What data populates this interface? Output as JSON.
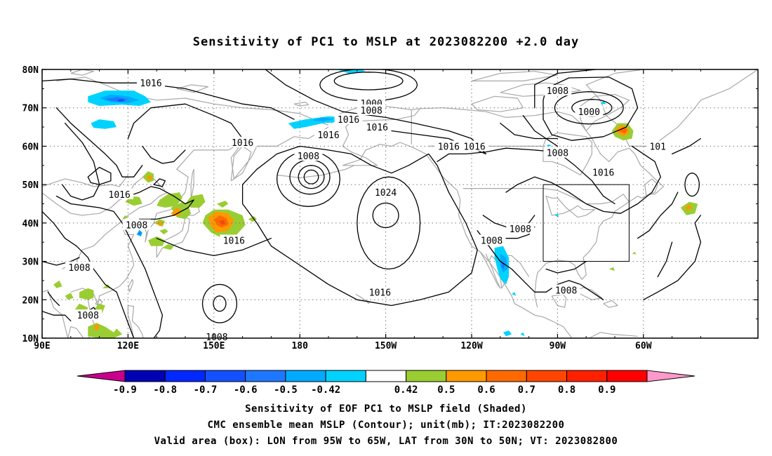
{
  "title": "Sensitivity of PC1 to MSLP at 2023082200 +2.0 day",
  "lat_labels": [
    "80N",
    "70N",
    "60N",
    "50N",
    "40N",
    "30N",
    "20N",
    "10N"
  ],
  "lon_labels": [
    "90E",
    "120E",
    "150E",
    "180",
    "150W",
    "120W",
    "90W",
    "60W"
  ],
  "contour_labels": [
    {
      "text": "1016",
      "lon": 128,
      "lat": 76.5
    },
    {
      "text": "1000",
      "lon": -155,
      "lat": 71.2
    },
    {
      "text": "1008",
      "lon": -155,
      "lat": 69.4
    },
    {
      "text": "1016",
      "lon": -163,
      "lat": 67
    },
    {
      "text": "1016",
      "lon": -153,
      "lat": 65
    },
    {
      "text": "1016",
      "lon": -170,
      "lat": 63
    },
    {
      "text": "1016",
      "lon": 160,
      "lat": 61
    },
    {
      "text": "1008",
      "lon": -177,
      "lat": 57.5
    },
    {
      "text": "1016",
      "lon": -128,
      "lat": 60
    },
    {
      "text": "1016",
      "lon": -119,
      "lat": 60
    },
    {
      "text": "1008",
      "lon": -90,
      "lat": 74.5
    },
    {
      "text": "1000",
      "lon": -79,
      "lat": 69
    },
    {
      "text": "1008",
      "lon": -90,
      "lat": 58.3
    },
    {
      "text": "1016",
      "lon": -74,
      "lat": 53.2
    },
    {
      "text": "101",
      "lon": -55,
      "lat": 60
    },
    {
      "text": "1024",
      "lon": -150,
      "lat": 48
    },
    {
      "text": "1016",
      "lon": 117,
      "lat": 47.5
    },
    {
      "text": "1008",
      "lon": 123,
      "lat": 39.5
    },
    {
      "text": "1016",
      "lon": 157,
      "lat": 35.5
    },
    {
      "text": "1008",
      "lon": 103,
      "lat": 28.5
    },
    {
      "text": "1008",
      "lon": 106,
      "lat": 16
    },
    {
      "text": "1008",
      "lon": 151,
      "lat": 10.4
    },
    {
      "text": "1008",
      "lon": -103,
      "lat": 38.5
    },
    {
      "text": "1008",
      "lon": -113,
      "lat": 35.5
    },
    {
      "text": "1016",
      "lon": -152,
      "lat": 22
    },
    {
      "text": "1008",
      "lon": -87,
      "lat": 22.5
    }
  ],
  "valid_box": {
    "lon_min": -95,
    "lon_max": -65,
    "lat_min": 30,
    "lat_max": 50
  },
  "colorbar": {
    "labels": [
      "-0.9",
      "-0.8",
      "-0.7",
      "-0.6",
      "-0.5",
      "-0.42",
      "0.42",
      "0.5",
      "0.6",
      "0.7",
      "0.8",
      "0.9"
    ],
    "colors": [
      "#c8008c",
      "#0000b4",
      "#0028ff",
      "#1450ff",
      "#1e78ff",
      "#00aaff",
      "#00d2ff",
      "#ffffff",
      "#9acd32",
      "#ff9900",
      "#ff6a00",
      "#ff4500",
      "#ff2000",
      "#ff0000",
      "#ff99cc"
    ]
  },
  "captions": [
    "Sensitivity of EOF PC1 to MSLP field (Shaded)",
    "CMC ensemble mean MSLP (Contour); unit(mb); IT:2023082200",
    "Valid area (box): LON from 95W to 65W, LAT from 30N to 50N; VT: 2023082800"
  ]
}
